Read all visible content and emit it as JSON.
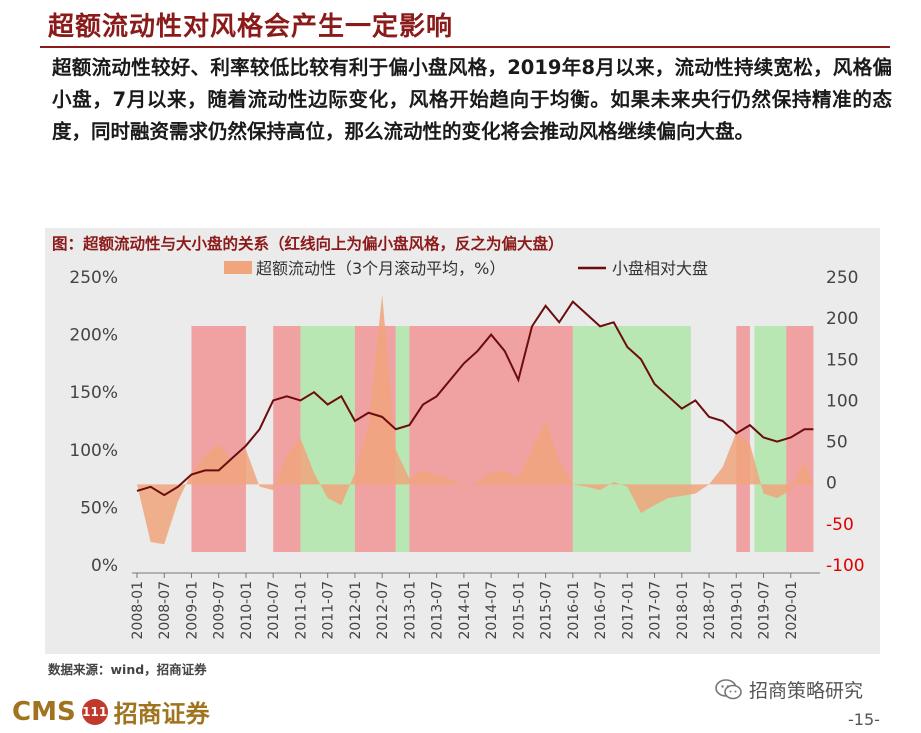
{
  "page": {
    "title": "超额流动性对风格会产生一定影响",
    "paragraph": "超额流动性较好、利率较低比较有利于偏小盘风格，2019年8月以来，流动性持续宽松，风格偏小盘，7月以来，随着流动性边际变化，风格开始趋向于均衡。如果未来央行仍然保持精准的态度，同时融资需求仍然保持高位，那么流动性的变化将会推动风格继续偏向大盘。",
    "source": "数据来源：wind，招商证券",
    "logo_text": "CMS",
    "logo_mark": "111",
    "logo_cn": "招商证券",
    "wechat_brand": "招商策略研究",
    "page_number": "-15-"
  },
  "colors": {
    "title": "#8b1a1a",
    "area_series": "#f0a57d",
    "line_series": "#6b0d0d",
    "red_shade": "#f28a8a",
    "green_shade": "#a8e6a0",
    "right_axis_negative": "#e00000",
    "chart_bg": "#ebebeb"
  },
  "chart_data": {
    "type": "area+line",
    "title": "图：超额流动性与大小盘的关系（红线向上为偏小盘风格，反之为偏大盘）",
    "legend": {
      "placement": "top",
      "area_label": "超额流动性（3个月滚动平均，%）",
      "line_label": "小盘相对大盘"
    },
    "x_ticks": [
      "2008-01",
      "2008-07",
      "2009-01",
      "2009-07",
      "2010-01",
      "2010-07",
      "2011-01",
      "2011-07",
      "2012-01",
      "2012-07",
      "2013-01",
      "2013-07",
      "2014-01",
      "2014-07",
      "2015-01",
      "2015-07",
      "2016-01",
      "2016-07",
      "2017-01",
      "2017-07",
      "2018-01",
      "2018-07",
      "2019-01",
      "2019-07",
      "2020-01"
    ],
    "left_axis": {
      "min": 0,
      "max": 250,
      "ticks": [
        "0%",
        "50%",
        "100%",
        "150%",
        "200%",
        "250%"
      ]
    },
    "right_axis": {
      "min": -100,
      "max": 250,
      "ticks": [
        "-100",
        "-50",
        "0",
        "50",
        "100",
        "150",
        "200",
        "250"
      ]
    },
    "shaded_periods": [
      {
        "color": "red",
        "start": "2009-01",
        "end": "2010-01"
      },
      {
        "color": "red",
        "start": "2010-07",
        "end": "2011-01"
      },
      {
        "color": "green",
        "start": "2011-01",
        "end": "2012-01"
      },
      {
        "color": "red",
        "start": "2012-01",
        "end": "2012-10"
      },
      {
        "color": "green",
        "start": "2012-10",
        "end": "2013-01"
      },
      {
        "color": "red",
        "start": "2013-01",
        "end": "2016-01"
      },
      {
        "color": "green",
        "start": "2016-01",
        "end": "2018-03"
      },
      {
        "color": "red",
        "start": "2019-01",
        "end": "2019-04"
      },
      {
        "color": "green",
        "start": "2019-05",
        "end": "2019-12"
      },
      {
        "color": "red",
        "start": "2019-12",
        "end": "2020-06"
      }
    ],
    "series": [
      {
        "name": "超额流动性（3个月滚动平均，%）",
        "axis": "left",
        "kind": "area",
        "baseline": 70,
        "x": [
          "2008-01",
          "2008-04",
          "2008-07",
          "2008-10",
          "2009-01",
          "2009-04",
          "2009-07",
          "2009-10",
          "2010-01",
          "2010-04",
          "2010-07",
          "2010-10",
          "2011-01",
          "2011-04",
          "2011-07",
          "2011-10",
          "2012-01",
          "2012-04",
          "2012-07",
          "2012-10",
          "2013-01",
          "2013-04",
          "2013-07",
          "2013-10",
          "2014-01",
          "2014-04",
          "2014-07",
          "2014-10",
          "2015-01",
          "2015-04",
          "2015-07",
          "2015-10",
          "2016-01",
          "2016-04",
          "2016-07",
          "2016-10",
          "2017-01",
          "2017-04",
          "2017-07",
          "2017-10",
          "2018-01",
          "2018-04",
          "2018-07",
          "2018-10",
          "2019-01",
          "2019-04",
          "2019-07",
          "2019-10",
          "2020-01",
          "2020-04",
          "2020-06"
        ],
        "values": [
          70,
          20,
          18,
          55,
          80,
          95,
          105,
          90,
          100,
          68,
          65,
          95,
          110,
          80,
          58,
          52,
          80,
          120,
          235,
          100,
          75,
          82,
          78,
          75,
          68,
          72,
          80,
          82,
          75,
          100,
          125,
          90,
          70,
          68,
          65,
          72,
          68,
          45,
          52,
          58,
          60,
          62,
          70,
          85,
          115,
          105,
          62,
          58,
          65,
          90,
          70
        ]
      },
      {
        "name": "小盘相对大盘",
        "axis": "right",
        "kind": "line",
        "x": [
          "2008-01",
          "2008-04",
          "2008-07",
          "2008-10",
          "2009-01",
          "2009-04",
          "2009-07",
          "2009-10",
          "2010-01",
          "2010-04",
          "2010-07",
          "2010-10",
          "2011-01",
          "2011-04",
          "2011-07",
          "2011-10",
          "2012-01",
          "2012-04",
          "2012-07",
          "2012-10",
          "2013-01",
          "2013-04",
          "2013-07",
          "2013-10",
          "2014-01",
          "2014-04",
          "2014-07",
          "2014-10",
          "2015-01",
          "2015-04",
          "2015-07",
          "2015-10",
          "2016-01",
          "2016-04",
          "2016-07",
          "2016-10",
          "2017-01",
          "2017-04",
          "2017-07",
          "2017-10",
          "2018-01",
          "2018-04",
          "2018-07",
          "2018-10",
          "2019-01",
          "2019-04",
          "2019-07",
          "2019-10",
          "2020-01",
          "2020-04",
          "2020-06"
        ],
        "values": [
          -10,
          -5,
          -15,
          -5,
          10,
          15,
          15,
          30,
          45,
          65,
          100,
          105,
          100,
          110,
          95,
          105,
          75,
          85,
          80,
          65,
          70,
          95,
          105,
          125,
          145,
          160,
          180,
          160,
          125,
          190,
          215,
          195,
          220,
          205,
          190,
          195,
          165,
          150,
          120,
          105,
          90,
          100,
          80,
          75,
          60,
          70,
          55,
          50,
          55,
          65,
          65
        ]
      }
    ]
  }
}
